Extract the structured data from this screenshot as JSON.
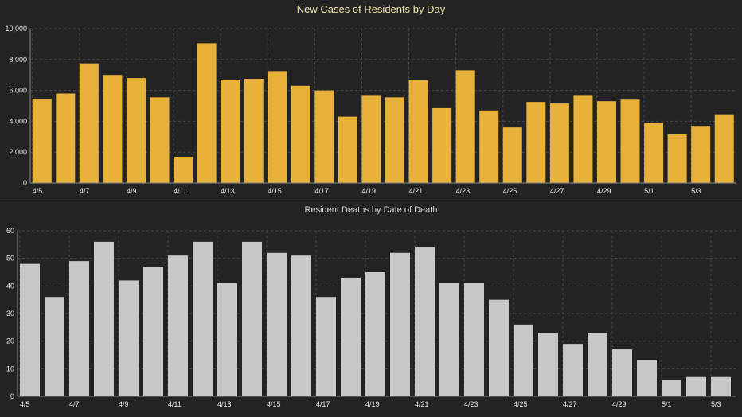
{
  "charts": {
    "cases": {
      "title": "New Cases of Residents by Day",
      "bar_color": "#e8b13a"
    },
    "deaths": {
      "title": "Resident Deaths by Date of Death",
      "bar_color": "#c8c8c8"
    }
  },
  "chart_data": [
    {
      "type": "bar",
      "title": "New Cases of Residents by Day",
      "categories": [
        "4/5",
        "4/6",
        "4/7",
        "4/8",
        "4/9",
        "4/10",
        "4/11",
        "4/12",
        "4/13",
        "4/14",
        "4/15",
        "4/16",
        "4/17",
        "4/18",
        "4/19",
        "4/20",
        "4/21",
        "4/22",
        "4/23",
        "4/24",
        "4/25",
        "4/26",
        "4/27",
        "4/28",
        "4/29",
        "4/30",
        "5/1",
        "5/2",
        "5/3",
        "5/4"
      ],
      "values": [
        5450,
        5800,
        7750,
        7000,
        6800,
        5550,
        1700,
        9050,
        6700,
        6750,
        7250,
        6300,
        6000,
        4300,
        5650,
        5550,
        6650,
        4850,
        7300,
        4700,
        3600,
        5250,
        5150,
        5650,
        5300,
        5400,
        3900,
        3150,
        3700,
        4450
      ],
      "x_tick_labels": [
        "4/5",
        "4/7",
        "4/9",
        "4/11",
        "4/13",
        "4/15",
        "4/17",
        "4/19",
        "4/21",
        "4/23",
        "4/25",
        "4/27",
        "4/29",
        "5/1",
        "5/3"
      ],
      "y_ticks": [
        "0",
        "2,000",
        "4,000",
        "6,000",
        "8,000",
        "10,000"
      ],
      "xlabel": "",
      "ylabel": "",
      "ylim": [
        0,
        10000
      ],
      "grid": true
    },
    {
      "type": "bar",
      "title": "Resident Deaths by Date of Death",
      "categories": [
        "4/5",
        "4/6",
        "4/7",
        "4/8",
        "4/9",
        "4/10",
        "4/11",
        "4/12",
        "4/13",
        "4/14",
        "4/15",
        "4/16",
        "4/17",
        "4/18",
        "4/19",
        "4/20",
        "4/21",
        "4/22",
        "4/23",
        "4/24",
        "4/25",
        "4/26",
        "4/27",
        "4/28",
        "4/29",
        "4/30",
        "5/1",
        "5/2",
        "5/3"
      ],
      "values": [
        48,
        36,
        49,
        56,
        42,
        47,
        51,
        56,
        41,
        56,
        52,
        51,
        36,
        43,
        45,
        52,
        54,
        41,
        41,
        35,
        26,
        23,
        19,
        23,
        17,
        13,
        6,
        7,
        7
      ],
      "x_tick_labels": [
        "4/5",
        "4/7",
        "4/9",
        "4/11",
        "4/13",
        "4/15",
        "4/17",
        "4/19",
        "4/21",
        "4/23",
        "4/25",
        "4/27",
        "4/29",
        "5/1",
        "5/3"
      ],
      "y_ticks": [
        "0",
        "10",
        "20",
        "30",
        "40",
        "50",
        "60"
      ],
      "xlabel": "",
      "ylabel": "",
      "ylim": [
        0,
        60
      ],
      "grid": true
    }
  ]
}
